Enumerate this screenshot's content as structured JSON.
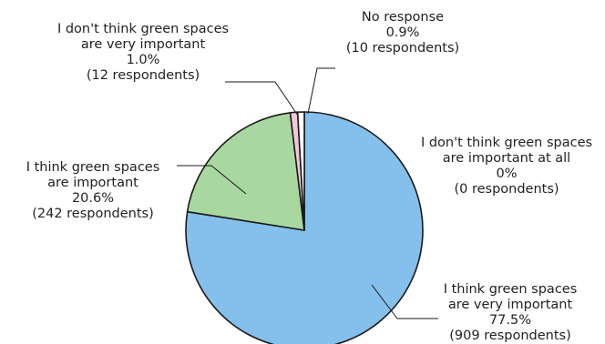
{
  "chart_data": {
    "type": "pie",
    "start_angle": "clockwise from top",
    "slices": [
      {
        "lines": [
          "I think green spaces",
          "are very important"
        ],
        "percent_label": "77.5%",
        "respondents_label": "(909 respondents)",
        "value": 77.5,
        "count": 909,
        "color": "#85bfeb"
      },
      {
        "lines": [
          "I think green spaces",
          "are important"
        ],
        "percent_label": "20.6%",
        "respondents_label": "(242 respondents)",
        "value": 20.6,
        "count": 242,
        "color": "#a8d8a0"
      },
      {
        "lines": [
          "I don't think green spaces",
          "are very important"
        ],
        "percent_label": "1.0%",
        "respondents_label": "(12 respondents)",
        "value": 1.0,
        "count": 12,
        "color": "#f5c6d9"
      },
      {
        "lines": [
          "No response"
        ],
        "percent_label": "0.9%",
        "respondents_label": "(10 respondents)",
        "value": 0.9,
        "count": 10,
        "color": "#ffffff"
      },
      {
        "lines": [
          "I don't think green spaces",
          "are important at all"
        ],
        "percent_label": "0%",
        "respondents_label": "(0 respondents)",
        "value": 0,
        "count": 0,
        "color": "#ffffff"
      }
    ]
  }
}
